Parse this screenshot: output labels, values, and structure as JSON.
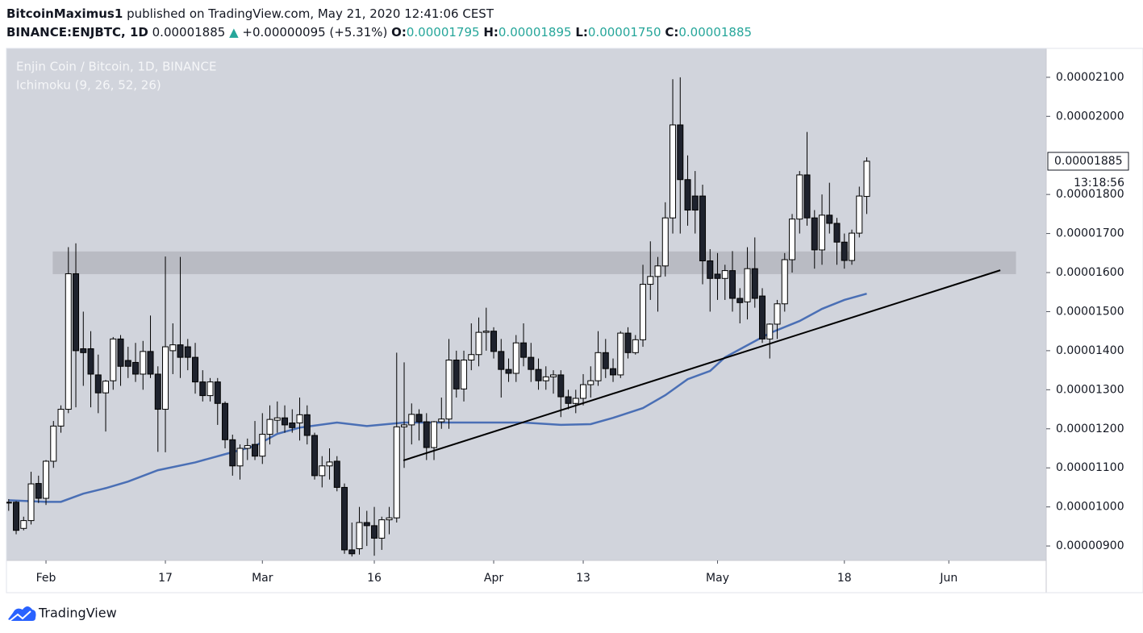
{
  "header": {
    "author": "BitcoinMaximus1",
    "published": "published on TradingView.com, May 21, 2020 12:41:06 CEST",
    "symbol": "BINANCE:ENJBTC, 1D",
    "price": "0.00001885",
    "arrow": "▲",
    "change": "+0.00000095 (+5.31%)",
    "ohlc": [
      {
        "label": "O:",
        "value": "0.00001795"
      },
      {
        "label": "H:",
        "value": "0.00001895"
      },
      {
        "label": "L:",
        "value": "0.00001750"
      },
      {
        "label": "C:",
        "value": "0.00001885"
      }
    ],
    "brand": "TradingView"
  },
  "chart_data": {
    "type": "candlestick",
    "title": "Enjin Coin / Bitcoin, 1D, BINANCE",
    "up_color": "#ffffff",
    "down_color": "#1e222d",
    "wick_color": "#000000",
    "xlim": [
      -0.3,
      139.05
    ],
    "ylim": [
      8.63e-06,
      2.174e-05
    ],
    "xticks": [
      {
        "value": 5,
        "label": "Feb"
      },
      {
        "value": 21,
        "label": "17"
      },
      {
        "value": 34,
        "label": "Mar"
      },
      {
        "value": 49,
        "label": "16"
      },
      {
        "value": 65,
        "label": "Apr"
      },
      {
        "value": 77,
        "label": "13"
      },
      {
        "value": 95,
        "label": "May"
      },
      {
        "value": 112,
        "label": "18"
      },
      {
        "value": 126,
        "label": "Jun"
      }
    ],
    "yticks": [
      {
        "value": 9e-06,
        "label": "0.00000900"
      },
      {
        "value": 1e-05,
        "label": "0.00001000"
      },
      {
        "value": 1.1e-05,
        "label": "0.00001100"
      },
      {
        "value": 1.2e-05,
        "label": "0.00001200"
      },
      {
        "value": 1.3e-05,
        "label": "0.00001300"
      },
      {
        "value": 1.4e-05,
        "label": "0.00001400"
      },
      {
        "value": 1.5e-05,
        "label": "0.00001500"
      },
      {
        "value": 1.6e-05,
        "label": "0.00001600"
      },
      {
        "value": 1.7e-05,
        "label": "0.00001700"
      },
      {
        "value": 1.8e-05,
        "label": "0.00001800"
      },
      {
        "value": 2e-05,
        "label": "0.00002000"
      },
      {
        "value": 2.1e-05,
        "label": "0.00002100"
      }
    ],
    "x": [
      0,
      1,
      2,
      3,
      4,
      5,
      6,
      7,
      8,
      9,
      10,
      11,
      12,
      13,
      14,
      15,
      16,
      17,
      18,
      19,
      20,
      21,
      22,
      23,
      24,
      25,
      26,
      27,
      28,
      29,
      30,
      31,
      32,
      33,
      34,
      35,
      36,
      37,
      38,
      39,
      40,
      41,
      42,
      43,
      44,
      45,
      46,
      47,
      48,
      49,
      50,
      51,
      52,
      53,
      54,
      55,
      56,
      57,
      58,
      59,
      60,
      61,
      62,
      63,
      64,
      65,
      66,
      67,
      68,
      69,
      70,
      71,
      72,
      73,
      74,
      75,
      76,
      77,
      78,
      79,
      80,
      81,
      82,
      83,
      84,
      85,
      86,
      87,
      88,
      89,
      90,
      91,
      92,
      93,
      94,
      95,
      96,
      97,
      98,
      99,
      100,
      101,
      102,
      103,
      104,
      105,
      106,
      107,
      108,
      109,
      110,
      111,
      112,
      113,
      114,
      115
    ],
    "open": [
      1.01e-05,
      1.012e-05,
      9.45e-06,
      9.65e-06,
      1.06e-05,
      1.022e-05,
      1.117e-05,
      1.207e-05,
      1.25e-05,
      1.597e-05,
      1.405e-05,
      1.405e-05,
      1.338e-05,
      1.292e-05,
      1.323e-05,
      1.43e-05,
      1.375e-05,
      1.37e-05,
      1.34e-05,
      1.398e-05,
      1.34e-05,
      1.25e-05,
      1.4e-05,
      1.415e-05,
      1.41e-05,
      1.383e-05,
      1.32e-05,
      1.285e-05,
      1.32e-05,
      1.265e-05,
      1.172e-05,
      1.105e-05,
      1.15e-05,
      1.16e-05,
      1.13e-05,
      1.186e-05,
      1.222e-05,
      1.228e-05,
      1.215e-05,
      1.215e-05,
      1.236e-05,
      1.183e-05,
      1.08e-05,
      1.105e-05,
      1.117e-05,
      1.05e-05,
      8.9e-06,
      8.93e-06,
      9.6e-06,
      9.52e-06,
      9.2e-06,
      9.67e-06,
      9.72e-06,
      1.205e-05,
      1.21e-05,
      1.237e-05,
      1.218e-05,
      1.152e-05,
      1.218e-05,
      1.225e-05,
      1.376e-05,
      1.302e-05,
      1.376e-05,
      1.39e-05,
      1.447e-05,
      1.45e-05,
      1.398e-05,
      1.352e-05,
      1.342e-05,
      1.42e-05,
      1.383e-05,
      1.352e-05,
      1.323e-05,
      1.333e-05,
      1.338e-05,
      1.282e-05,
      1.265e-05,
      1.278e-05,
      1.313e-05,
      1.323e-05,
      1.395e-05,
      1.354e-05,
      1.338e-05,
      1.445e-05,
      1.395e-05,
      1.428e-05,
      1.57e-05,
      1.59e-05,
      1.617e-05,
      1.74e-05,
      1.978e-05,
      1.838e-05,
      1.796e-05,
      1.796e-05,
      1.63e-05,
      1.596e-05,
      1.585e-05,
      1.605e-05,
      1.534e-05,
      1.525e-05,
      1.61e-05,
      1.54e-05,
      1.43e-05,
      1.468e-05,
      1.52e-05,
      1.633e-05,
      1.737e-05,
      1.85e-05,
      1.74e-05,
      1.658e-05,
      1.747e-05,
      1.726e-05,
      1.678e-05,
      1.631e-05,
      1.701e-05,
      1.795e-05
    ],
    "high": [
      1.02e-05,
      1.015e-05,
      9.75e-06,
      1.09e-05,
      1.08e-05,
      1.12e-05,
      1.22e-05,
      1.26e-05,
      1.665e-05,
      1.675e-05,
      1.5e-05,
      1.45e-05,
      1.39e-05,
      1.325e-05,
      1.435e-05,
      1.44e-05,
      1.41e-05,
      1.42e-05,
      1.425e-05,
      1.49e-05,
      1.36e-05,
      1.641e-05,
      1.47e-05,
      1.64e-05,
      1.43e-05,
      1.42e-05,
      1.35e-05,
      1.33e-05,
      1.33e-05,
      1.27e-05,
      1.185e-05,
      1.16e-05,
      1.175e-05,
      1.22e-05,
      1.24e-05,
      1.26e-05,
      1.27e-05,
      1.26e-05,
      1.25e-05,
      1.28e-05,
      1.26e-05,
      1.19e-05,
      1.13e-05,
      1.15e-05,
      1.13e-05,
      1.06e-05,
      9.6e-06,
      1e-05,
      9.9e-06,
      1e-05,
      9.75e-06,
      1e-05,
      1.395e-05,
      1.37e-05,
      1.265e-05,
      1.25e-05,
      1.24e-05,
      1.22e-05,
      1.28e-05,
      1.43e-05,
      1.4e-05,
      1.4e-05,
      1.47e-05,
      1.485e-05,
      1.51e-05,
      1.46e-05,
      1.43e-05,
      1.38e-05,
      1.44e-05,
      1.47e-05,
      1.42e-05,
      1.38e-05,
      1.36e-05,
      1.35e-05,
      1.35e-05,
      1.3e-05,
      1.3e-05,
      1.34e-05,
      1.36e-05,
      1.45e-05,
      1.43e-05,
      1.38e-05,
      1.45e-05,
      1.46e-05,
      1.44e-05,
      1.62e-05,
      1.68e-05,
      1.64e-05,
      1.78e-05,
      2.095e-05,
      2.1e-05,
      1.9e-05,
      1.86e-05,
      1.825e-05,
      1.66e-05,
      1.65e-05,
      1.62e-05,
      1.655e-05,
      1.56e-05,
      1.665e-05,
      1.69e-05,
      1.56e-05,
      1.47e-05,
      1.53e-05,
      1.65e-05,
      1.75e-05,
      1.86e-05,
      1.96e-05,
      1.76e-05,
      1.8e-05,
      1.83e-05,
      1.74e-05,
      1.7e-05,
      1.71e-05,
      1.82e-05,
      1.895e-05
    ],
    "low": [
      9.9e-06,
      9.3e-06,
      9.4e-06,
      9.55e-06,
      1.01e-05,
      1.005e-05,
      1.1e-05,
      1.19e-05,
      1.24e-05,
      1.255e-05,
      1.31e-05,
      1.255e-05,
      1.24e-05,
      1.193e-05,
      1.3e-05,
      1.31e-05,
      1.33e-05,
      1.32e-05,
      1.3e-05,
      1.33e-05,
      1.141e-05,
      1.14e-05,
      1.34e-05,
      1.33e-05,
      1.35e-05,
      1.29e-05,
      1.27e-05,
      1.27e-05,
      1.21e-05,
      1.15e-05,
      1.08e-05,
      1.07e-05,
      1.12e-05,
      1.12e-05,
      1.11e-05,
      1.16e-05,
      1.19e-05,
      1.19e-05,
      1.19e-05,
      1.17e-05,
      1.16e-05,
      1.07e-05,
      1.05e-05,
      1.07e-05,
      1.04e-05,
      8.8e-06,
      8.73e-06,
      8.78e-06,
      9e-06,
      8.75e-06,
      8.9e-06,
      9.3e-06,
      9.6e-06,
      1.1e-05,
      1.16e-05,
      1.17e-05,
      1.12e-05,
      1.12e-05,
      1.2e-05,
      1.2e-05,
      1.28e-05,
      1.27e-05,
      1.35e-05,
      1.36e-05,
      1.4e-05,
      1.38e-05,
      1.28e-05,
      1.32e-05,
      1.32e-05,
      1.36e-05,
      1.32e-05,
      1.3e-05,
      1.3e-05,
      1.29e-05,
      1.23e-05,
      1.25e-05,
      1.24e-05,
      1.26e-05,
      1.28e-05,
      1.31e-05,
      1.33e-05,
      1.32e-05,
      1.33e-05,
      1.38e-05,
      1.39e-05,
      1.41e-05,
      1.53e-05,
      1.5e-05,
      1.59e-05,
      1.7e-05,
      1.7e-05,
      1.72e-05,
      1.7e-05,
      1.57e-05,
      1.5e-05,
      1.53e-05,
      1.53e-05,
      1.5e-05,
      1.47e-05,
      1.48e-05,
      1.51e-05,
      1.42e-05,
      1.38e-05,
      1.43e-05,
      1.5e-05,
      1.6e-05,
      1.7e-05,
      1.72e-05,
      1.61e-05,
      1.62e-05,
      1.7e-05,
      1.62e-05,
      1.61e-05,
      1.62e-05,
      1.69e-05,
      1.75e-05
    ],
    "close": [
      1.012e-05,
      9.4e-06,
      9.65e-06,
      1.059e-05,
      1.022e-05,
      1.117e-05,
      1.207e-05,
      1.25e-05,
      1.597e-05,
      1.4e-05,
      1.395e-05,
      1.34e-05,
      1.292e-05,
      1.322e-05,
      1.43e-05,
      1.36e-05,
      1.36e-05,
      1.34e-05,
      1.398e-05,
      1.34e-05,
      1.25e-05,
      1.41e-05,
      1.415e-05,
      1.383e-05,
      1.383e-05,
      1.32e-05,
      1.285e-05,
      1.32e-05,
      1.265e-05,
      1.172e-05,
      1.105e-05,
      1.15e-05,
      1.157e-05,
      1.13e-05,
      1.186e-05,
      1.224e-05,
      1.228e-05,
      1.21e-05,
      1.203e-05,
      1.236e-05,
      1.183e-05,
      1.08e-05,
      1.105e-05,
      1.115e-05,
      1.05e-05,
      8.9e-06,
      8.8e-06,
      9.6e-06,
      9.52e-06,
      9.2e-06,
      9.67e-06,
      9.72e-06,
      1.205e-05,
      1.21e-05,
      1.237e-05,
      1.218e-05,
      1.152e-05,
      1.218e-05,
      1.225e-05,
      1.376e-05,
      1.302e-05,
      1.376e-05,
      1.39e-05,
      1.447e-05,
      1.45e-05,
      1.398e-05,
      1.352e-05,
      1.342e-05,
      1.42e-05,
      1.383e-05,
      1.352e-05,
      1.323e-05,
      1.333e-05,
      1.338e-05,
      1.282e-05,
      1.265e-05,
      1.278e-05,
      1.313e-05,
      1.323e-05,
      1.395e-05,
      1.354e-05,
      1.338e-05,
      1.445e-05,
      1.395e-05,
      1.428e-05,
      1.57e-05,
      1.59e-05,
      1.617e-05,
      1.74e-05,
      1.978e-05,
      1.838e-05,
      1.76e-05,
      1.76e-05,
      1.63e-05,
      1.585e-05,
      1.585e-05,
      1.605e-05,
      1.534e-05,
      1.523e-05,
      1.61e-05,
      1.534e-05,
      1.43e-05,
      1.468e-05,
      1.52e-05,
      1.633e-05,
      1.737e-05,
      1.85e-05,
      1.74e-05,
      1.658e-05,
      1.747e-05,
      1.726e-05,
      1.678e-05,
      1.631e-05,
      1.701e-05,
      1.796e-05,
      1.885e-05
    ],
    "lines": [
      {
        "name": "Ichimoku (9, 26, 52, 26)",
        "color": "#4a6fb5",
        "x": [
          0,
          5,
          7,
          10,
          13,
          16,
          20,
          25,
          29,
          33,
          36,
          39,
          44,
          48,
          53,
          57,
          64,
          69,
          74,
          78,
          81,
          85,
          88,
          91,
          94,
          96,
          99,
          102,
          106,
          109,
          112,
          115
        ],
        "values": [
          1.017e-05,
          1.013e-05,
          1.013e-05,
          1.034e-05,
          1.048e-05,
          1.065e-05,
          1.094e-05,
          1.114e-05,
          1.135e-05,
          1.156e-05,
          1.187e-05,
          1.203e-05,
          1.216e-05,
          1.207e-05,
          1.216e-05,
          1.216e-05,
          1.216e-05,
          1.216e-05,
          1.21e-05,
          1.212e-05,
          1.228e-05,
          1.253e-05,
          1.286e-05,
          1.327e-05,
          1.348e-05,
          1.383e-05,
          1.414e-05,
          1.445e-05,
          1.476e-05,
          1.507e-05,
          1.53e-05,
          1.546e-05
        ]
      },
      {
        "color": "#000000",
        "x": [
          52.9,
          132.9
        ],
        "values": [
          1.119e-05,
          1.606e-05
        ]
      }
    ],
    "zone": {
      "x": [
        5.9,
        135
      ],
      "y": [
        1.596e-05,
        1.654e-05
      ],
      "color": "#b9bbc3"
    },
    "last_price": 1.885e-05,
    "countdown": "13:18:56"
  }
}
